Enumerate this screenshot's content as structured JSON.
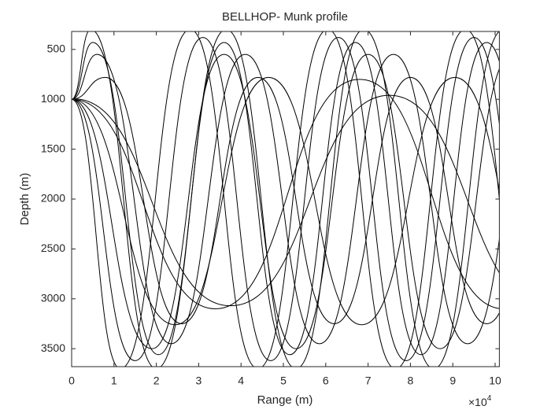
{
  "chart_data": {
    "type": "line",
    "title": "BELLHOP- Munk profile",
    "x_label": "Range (m)",
    "y_label": "Depth (m)",
    "x_multiplier": {
      "base": "×10",
      "exponent": "4"
    },
    "xlim": [
      0,
      10.1
    ],
    "xticks": [
      0,
      1,
      2,
      3,
      4,
      5,
      6,
      7,
      8,
      9,
      10
    ],
    "ylim": [
      320,
      3680
    ],
    "yticks": [
      500,
      1000,
      1500,
      2000,
      2500,
      3000,
      3500
    ],
    "y_reversed": true,
    "series": [
      {
        "color": "#000000",
        "x": [
          0,
          1.15,
          2.8,
          4.4,
          6.05,
          7.65,
          9.3,
          10.9
        ],
        "values": [
          1000,
          3700,
          300,
          3700,
          300,
          3700,
          300,
          3700
        ]
      },
      {
        "color": "#000000",
        "x": [
          0,
          3.4,
          6.8,
          10.2
        ],
        "values": [
          1000,
          3100,
          800,
          3100
        ]
      },
      {
        "color": "#000000",
        "x": [
          0,
          1.5,
          3.1,
          4.7,
          6.3,
          7.9,
          9.5,
          11.1
        ],
        "values": [
          1000,
          3620,
          380,
          3620,
          380,
          3620,
          380,
          3620
        ]
      },
      {
        "color": "#000000",
        "x": [
          0,
          1.9,
          3.6,
          5.3,
          7.0,
          8.7,
          10.4
        ],
        "values": [
          1000,
          3500,
          550,
          3500,
          550,
          3500,
          550
        ]
      },
      {
        "color": "#000000",
        "x": [
          0,
          2.45,
          4.65,
          6.85,
          9.05,
          11.25
        ],
        "values": [
          1000,
          3260,
          780,
          3260,
          780,
          3260
        ]
      },
      {
        "color": "#000000",
        "x": [
          0,
          0.45,
          2.0,
          3.65,
          5.3,
          6.9,
          8.55,
          10.2
        ],
        "values": [
          1000,
          300,
          3700,
          300,
          3700,
          300,
          3700,
          300
        ]
      },
      {
        "color": "#000000",
        "x": [
          0,
          0.5,
          2.05,
          3.6,
          5.15,
          6.7,
          8.25,
          9.8,
          11.35
        ],
        "values": [
          1000,
          430,
          3560,
          430,
          3560,
          430,
          3560,
          430,
          3560
        ]
      },
      {
        "color": "#000000",
        "x": [
          0,
          0.6,
          2.35,
          4.1,
          5.85,
          7.6,
          9.35,
          11.1
        ],
        "values": [
          1000,
          550,
          3450,
          550,
          3450,
          550,
          3450,
          550
        ]
      },
      {
        "color": "#000000",
        "x": [
          0,
          0.8,
          2.6,
          4.4,
          6.2,
          8.0,
          9.8,
          11.6
        ],
        "values": [
          1000,
          780,
          3250,
          780,
          3250,
          780,
          3250,
          780
        ]
      },
      {
        "color": "#000000",
        "x": [
          0,
          0.05,
          3.75,
          7.5,
          11.2
        ],
        "values": [
          1000,
          995,
          3070,
          960,
          3070
        ]
      }
    ]
  }
}
